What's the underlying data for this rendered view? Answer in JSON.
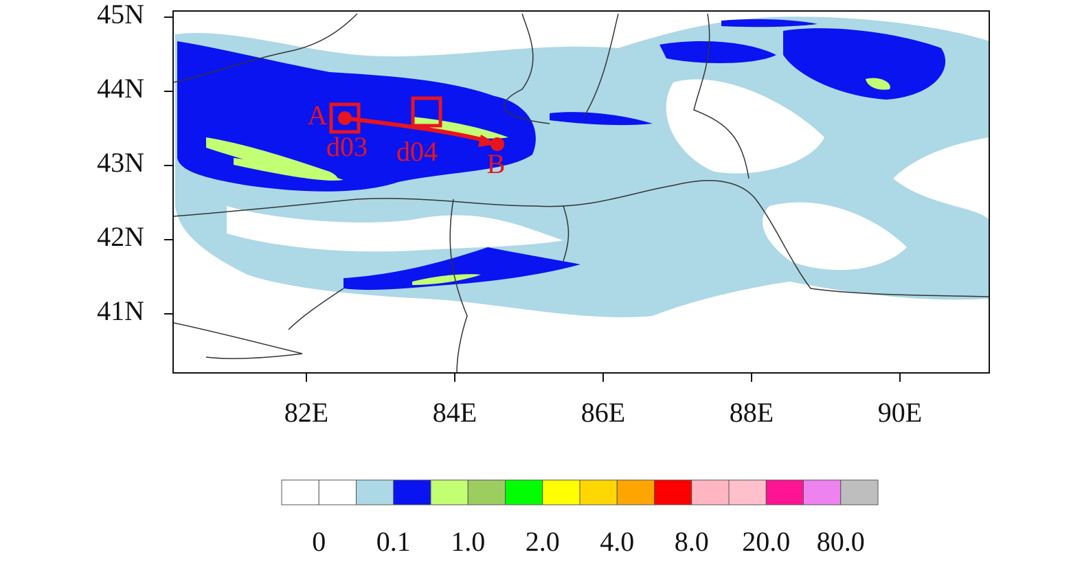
{
  "map": {
    "lat_ticks": [
      "45N",
      "44N",
      "43N",
      "42N",
      "41N"
    ],
    "lon_ticks": [
      "82E",
      "84E",
      "86E",
      "88E",
      "90E"
    ],
    "annotations": {
      "point_a": "A",
      "point_b": "B",
      "box_1": "d03",
      "box_2": "d04"
    },
    "colorbar": {
      "colors": [
        "#ffffff",
        "#ffffff",
        "#add8e6",
        "#0a14f0",
        "#c3ff73",
        "#9dcd5f",
        "#00ff00",
        "#ffff00",
        "#ffd700",
        "#ffa500",
        "#ff0000",
        "#ffb6c1",
        "#ffc0cb",
        "#ff1493",
        "#ee82ee",
        "#bebebe"
      ],
      "labels": [
        "0",
        "0.1",
        "1.0",
        "2.0",
        "4.0",
        "8.0",
        "20.0",
        "80.0"
      ]
    }
  }
}
